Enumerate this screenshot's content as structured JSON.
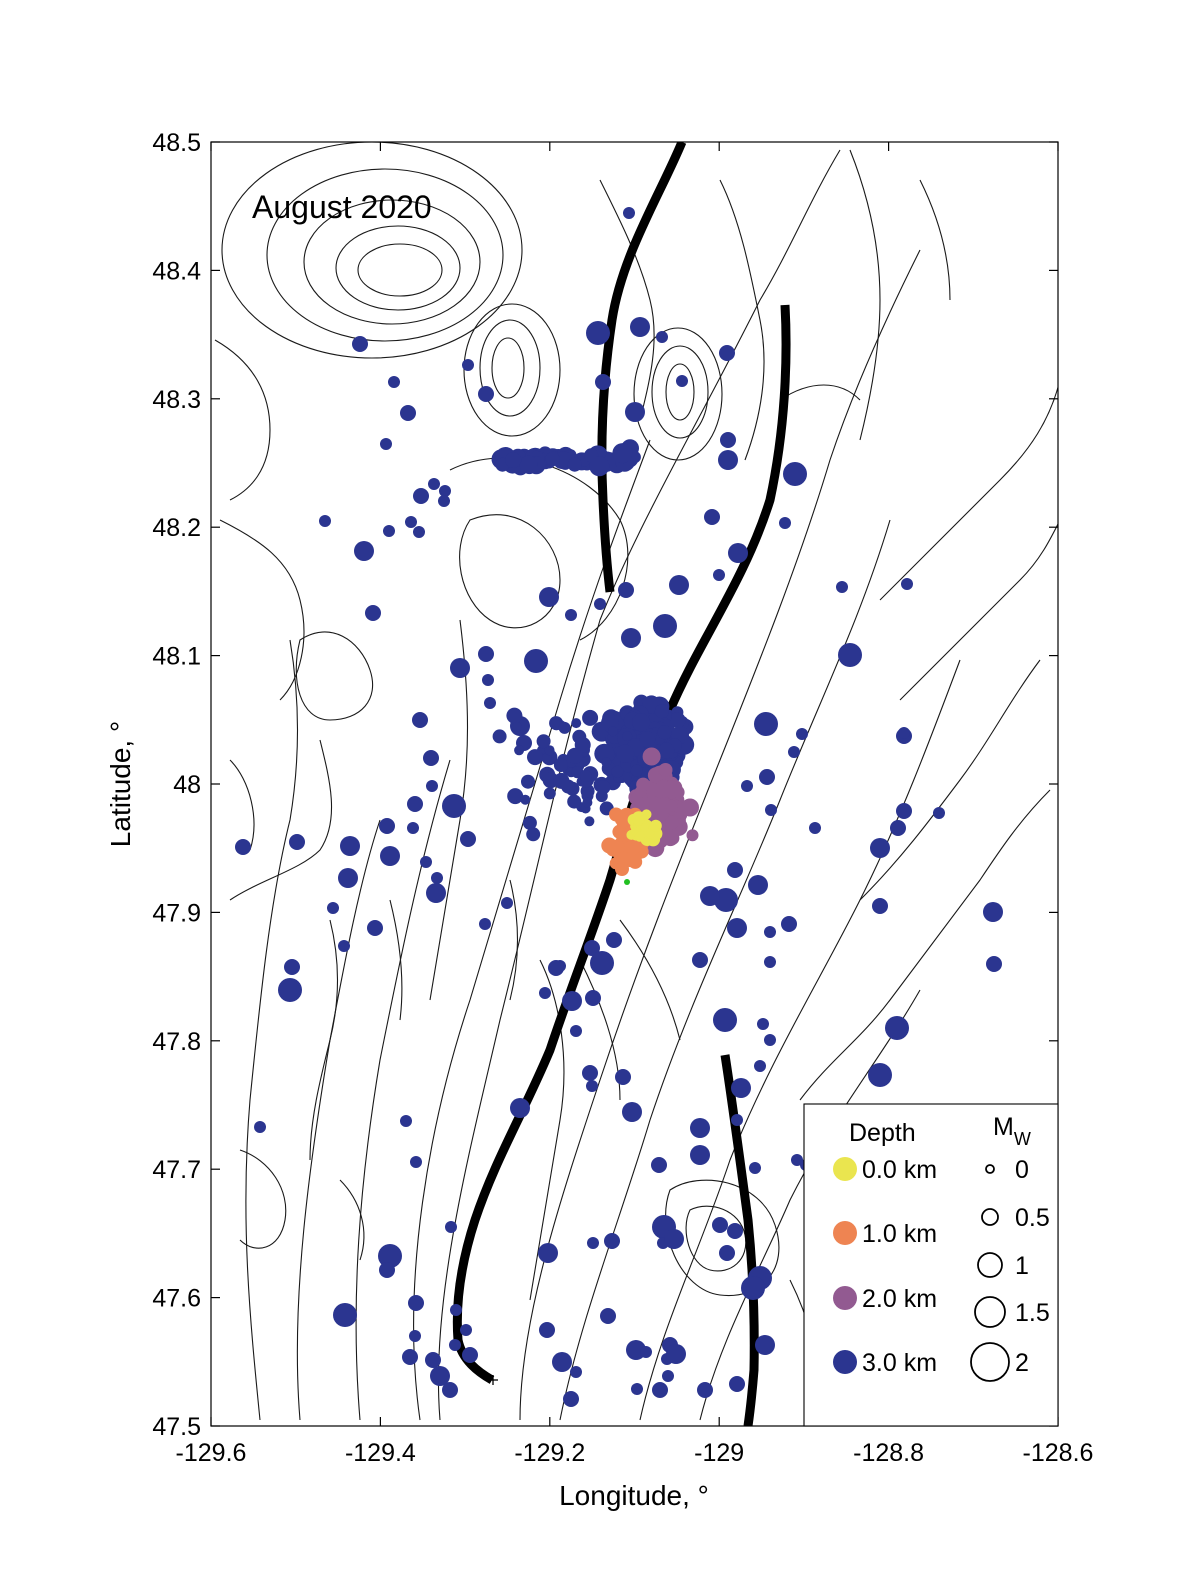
{
  "figure": {
    "panel_label": "August 2020",
    "xlabel": "Longitude, °",
    "ylabel": "Latitude, °",
    "xlim": [
      -129.6,
      -128.6
    ],
    "ylim": [
      47.5,
      48.5
    ],
    "x_ticks": [
      "-129.6",
      "-129.4",
      "-129.2",
      "-129",
      "-128.8",
      "-128.6"
    ],
    "y_ticks": [
      "47.5",
      "47.6",
      "47.7",
      "47.8",
      "47.9",
      "48",
      "48.1",
      "48.2",
      "48.3",
      "48.4",
      "48.5"
    ]
  },
  "legend": {
    "depth_title": "Depth",
    "depth_entries": [
      {
        "label": "0.0 km",
        "color": "#eae54f"
      },
      {
        "label": "1.0 km",
        "color": "#ee8452"
      },
      {
        "label": "2.0 km",
        "color": "#925a91"
      },
      {
        "label": "3.0 km",
        "color": "#2b3590"
      }
    ],
    "mag_title": "M",
    "mag_subscript": "W",
    "mag_entries": [
      "0",
      "0.5",
      "1",
      "1.5",
      "2"
    ]
  },
  "colors": {
    "depth_0": "#eae54f",
    "depth_1": "#ee8452",
    "depth_2": "#925a91",
    "depth_3": "#2b3590",
    "fault": "#000000",
    "contour": "#1a1a1a"
  }
}
